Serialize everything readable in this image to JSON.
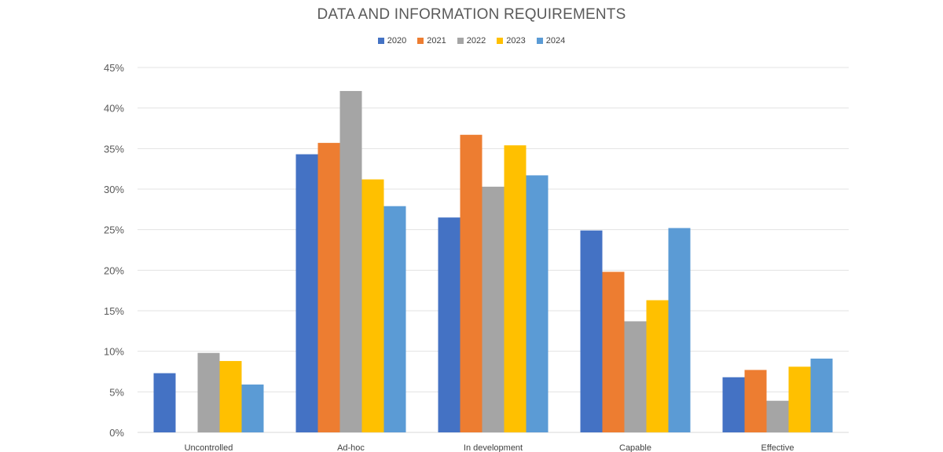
{
  "chart_data": {
    "type": "bar",
    "title": "DATA AND INFORMATION REQUIREMENTS",
    "xlabel": "",
    "ylabel": "",
    "ylim": [
      0,
      45
    ],
    "y_ticks": [
      "0%",
      "5%",
      "10%",
      "15%",
      "20%",
      "25%",
      "30%",
      "35%",
      "40%",
      "45%"
    ],
    "grid": true,
    "legend_position": "top-center",
    "categories": [
      "Uncontrolled",
      "Ad-hoc",
      "In development",
      "Capable",
      "Effective"
    ],
    "series": [
      {
        "name": "2020",
        "color": "#4472c4",
        "values": [
          7.3,
          34.3,
          26.5,
          24.9,
          6.8
        ]
      },
      {
        "name": "2021",
        "color": "#ed7d31",
        "values": [
          0,
          35.7,
          36.7,
          19.8,
          7.7
        ]
      },
      {
        "name": "2022",
        "color": "#a5a5a5",
        "values": [
          9.8,
          42.1,
          30.3,
          13.7,
          3.9
        ]
      },
      {
        "name": "2023",
        "color": "#ffc000",
        "values": [
          8.8,
          31.2,
          35.4,
          16.3,
          8.1
        ]
      },
      {
        "name": "2024",
        "color": "#5b9bd5",
        "values": [
          5.9,
          27.9,
          31.7,
          25.2,
          9.1
        ]
      }
    ]
  }
}
